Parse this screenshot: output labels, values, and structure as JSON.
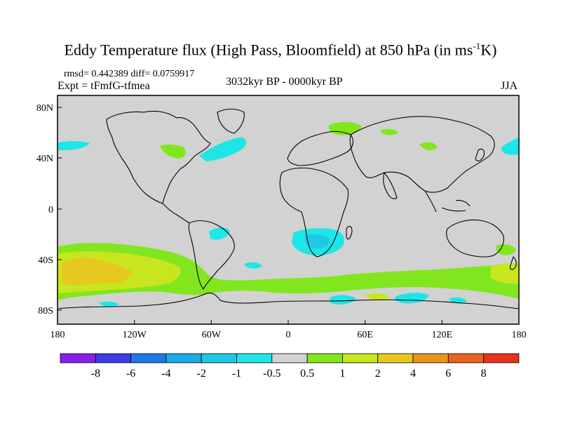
{
  "title": {
    "main": "Eddy Temperature flux (High Pass, Bloomfield) at 850 hPa (in ms",
    "sup": "-1",
    "end": "K)"
  },
  "subtitle": {
    "stats": "rmsd= 0.442389 diff= 0.0759917",
    "expt": "Expt = tFmfG-tfmea",
    "period": "3032kyr BP - 0000kyr BP",
    "season": "JJA"
  },
  "axes": {
    "x_ticks": [
      "180",
      "120W",
      "60W",
      "0",
      "60E",
      "120E",
      "180"
    ],
    "y_ticks": [
      "80N",
      "40N",
      "0",
      "40S",
      "80S"
    ]
  },
  "colorbar": {
    "labels": [
      "-8",
      "-6",
      "-4",
      "-2",
      "-1",
      "-0.5",
      "0.5",
      "1",
      "2",
      "4",
      "6",
      "8"
    ],
    "colors": [
      "#8a1ee6",
      "#3c3ce6",
      "#1e78e6",
      "#1eaae6",
      "#1ec8e6",
      "#1ee6e6",
      "#d2d2d2",
      "#82e61e",
      "#c8e61e",
      "#e6c81e",
      "#e6961e",
      "#e6641e",
      "#e6321e"
    ]
  },
  "map_colors": {
    "ocean_land": "#d2d2d2",
    "coast": "#000000"
  }
}
